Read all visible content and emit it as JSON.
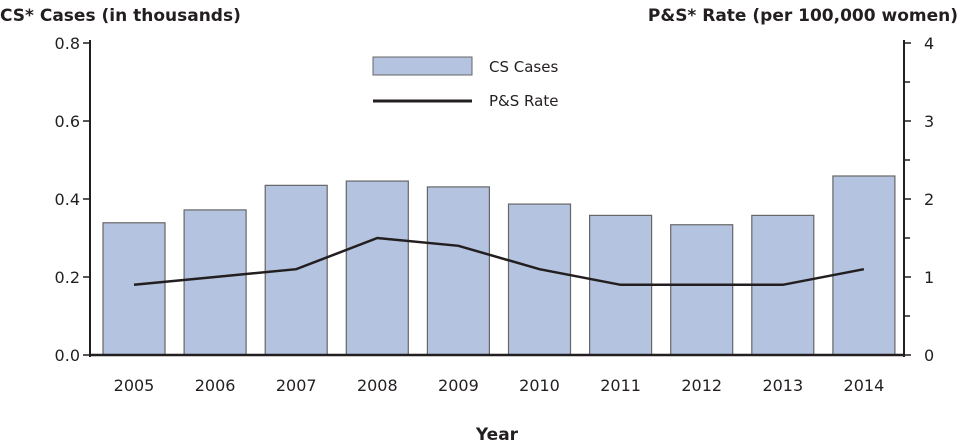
{
  "chart_data": {
    "type": "bar+line",
    "categories": [
      "2005",
      "2006",
      "2007",
      "2008",
      "2009",
      "2010",
      "2011",
      "2012",
      "2013",
      "2014"
    ],
    "series": [
      {
        "name": "CS Cases",
        "type": "bar",
        "axis": "left",
        "color": "#b4c3e0",
        "values": [
          0.339,
          0.372,
          0.435,
          0.446,
          0.431,
          0.387,
          0.358,
          0.334,
          0.358,
          0.459
        ]
      },
      {
        "name": "P&S Rate",
        "type": "line",
        "axis": "right",
        "color": "#231f20",
        "values": [
          0.9,
          1.0,
          1.1,
          1.5,
          1.4,
          1.1,
          0.9,
          0.9,
          0.9,
          1.1
        ]
      }
    ],
    "ylabel_left": "CS* Cases (in thousands)",
    "ylabel_right": "P&S* Rate (per 100,000 women)",
    "xlabel": "Year",
    "ylim_left": [
      0,
      0.8
    ],
    "ylim_right": [
      0,
      4
    ],
    "yticks_left": [
      "0.0",
      "0.2",
      "0.4",
      "0.6",
      "0.8"
    ],
    "yticks_right": [
      "0",
      "1",
      "2",
      "3",
      "4"
    ],
    "grid": false,
    "legend_position": "top-center"
  }
}
